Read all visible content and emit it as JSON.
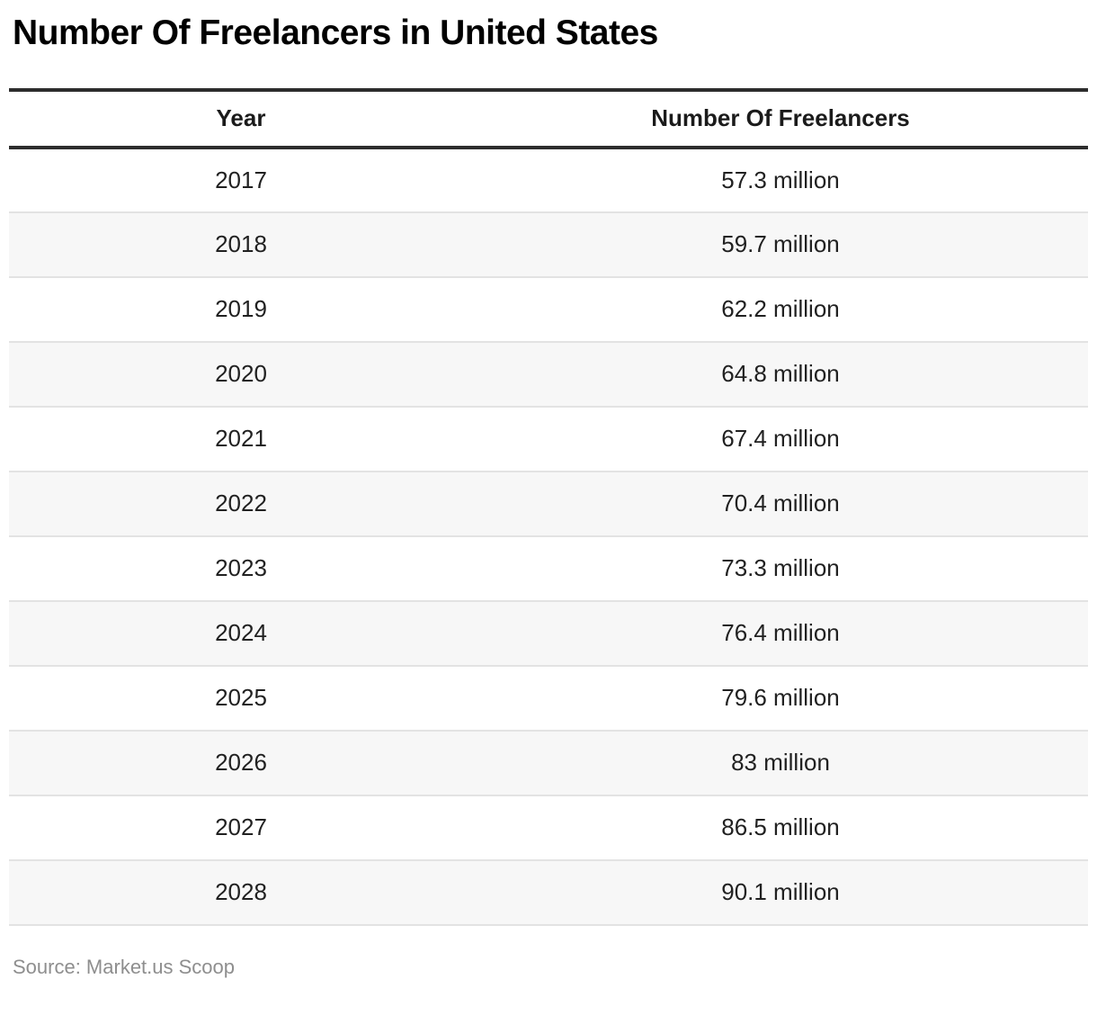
{
  "chart_data": {
    "type": "table",
    "title": "Number Of Freelancers in United States",
    "columns": [
      "Year",
      "Number Of Freelancers"
    ],
    "rows": [
      {
        "year": "2017",
        "value": "57.3 million",
        "value_millions": 57.3
      },
      {
        "year": "2018",
        "value": "59.7 million",
        "value_millions": 59.7
      },
      {
        "year": "2019",
        "value": "62.2 million",
        "value_millions": 62.2
      },
      {
        "year": "2020",
        "value": "64.8 million",
        "value_millions": 64.8
      },
      {
        "year": "2021",
        "value": "67.4 million",
        "value_millions": 67.4
      },
      {
        "year": "2022",
        "value": "70.4 million",
        "value_millions": 70.4
      },
      {
        "year": "2023",
        "value": "73.3 million",
        "value_millions": 73.3
      },
      {
        "year": "2024",
        "value": "76.4 million",
        "value_millions": 76.4
      },
      {
        "year": "2025",
        "value": "79.6 million",
        "value_millions": 79.6
      },
      {
        "year": "2026",
        "value": "83 million",
        "value_millions": 83.0
      },
      {
        "year": "2027",
        "value": "86.5 million",
        "value_millions": 86.5
      },
      {
        "year": "2028",
        "value": "90.1 million",
        "value_millions": 90.1
      }
    ],
    "source": "Source: Market.us Scoop",
    "layout": {
      "alternate_row_background": "#f7f7f7",
      "rule_color": "#2d2d2d",
      "separator_color": "#e3e3e3",
      "title_color": "#000000",
      "cell_text_color": "#212121",
      "source_text_color": "#8e8e8e"
    }
  }
}
